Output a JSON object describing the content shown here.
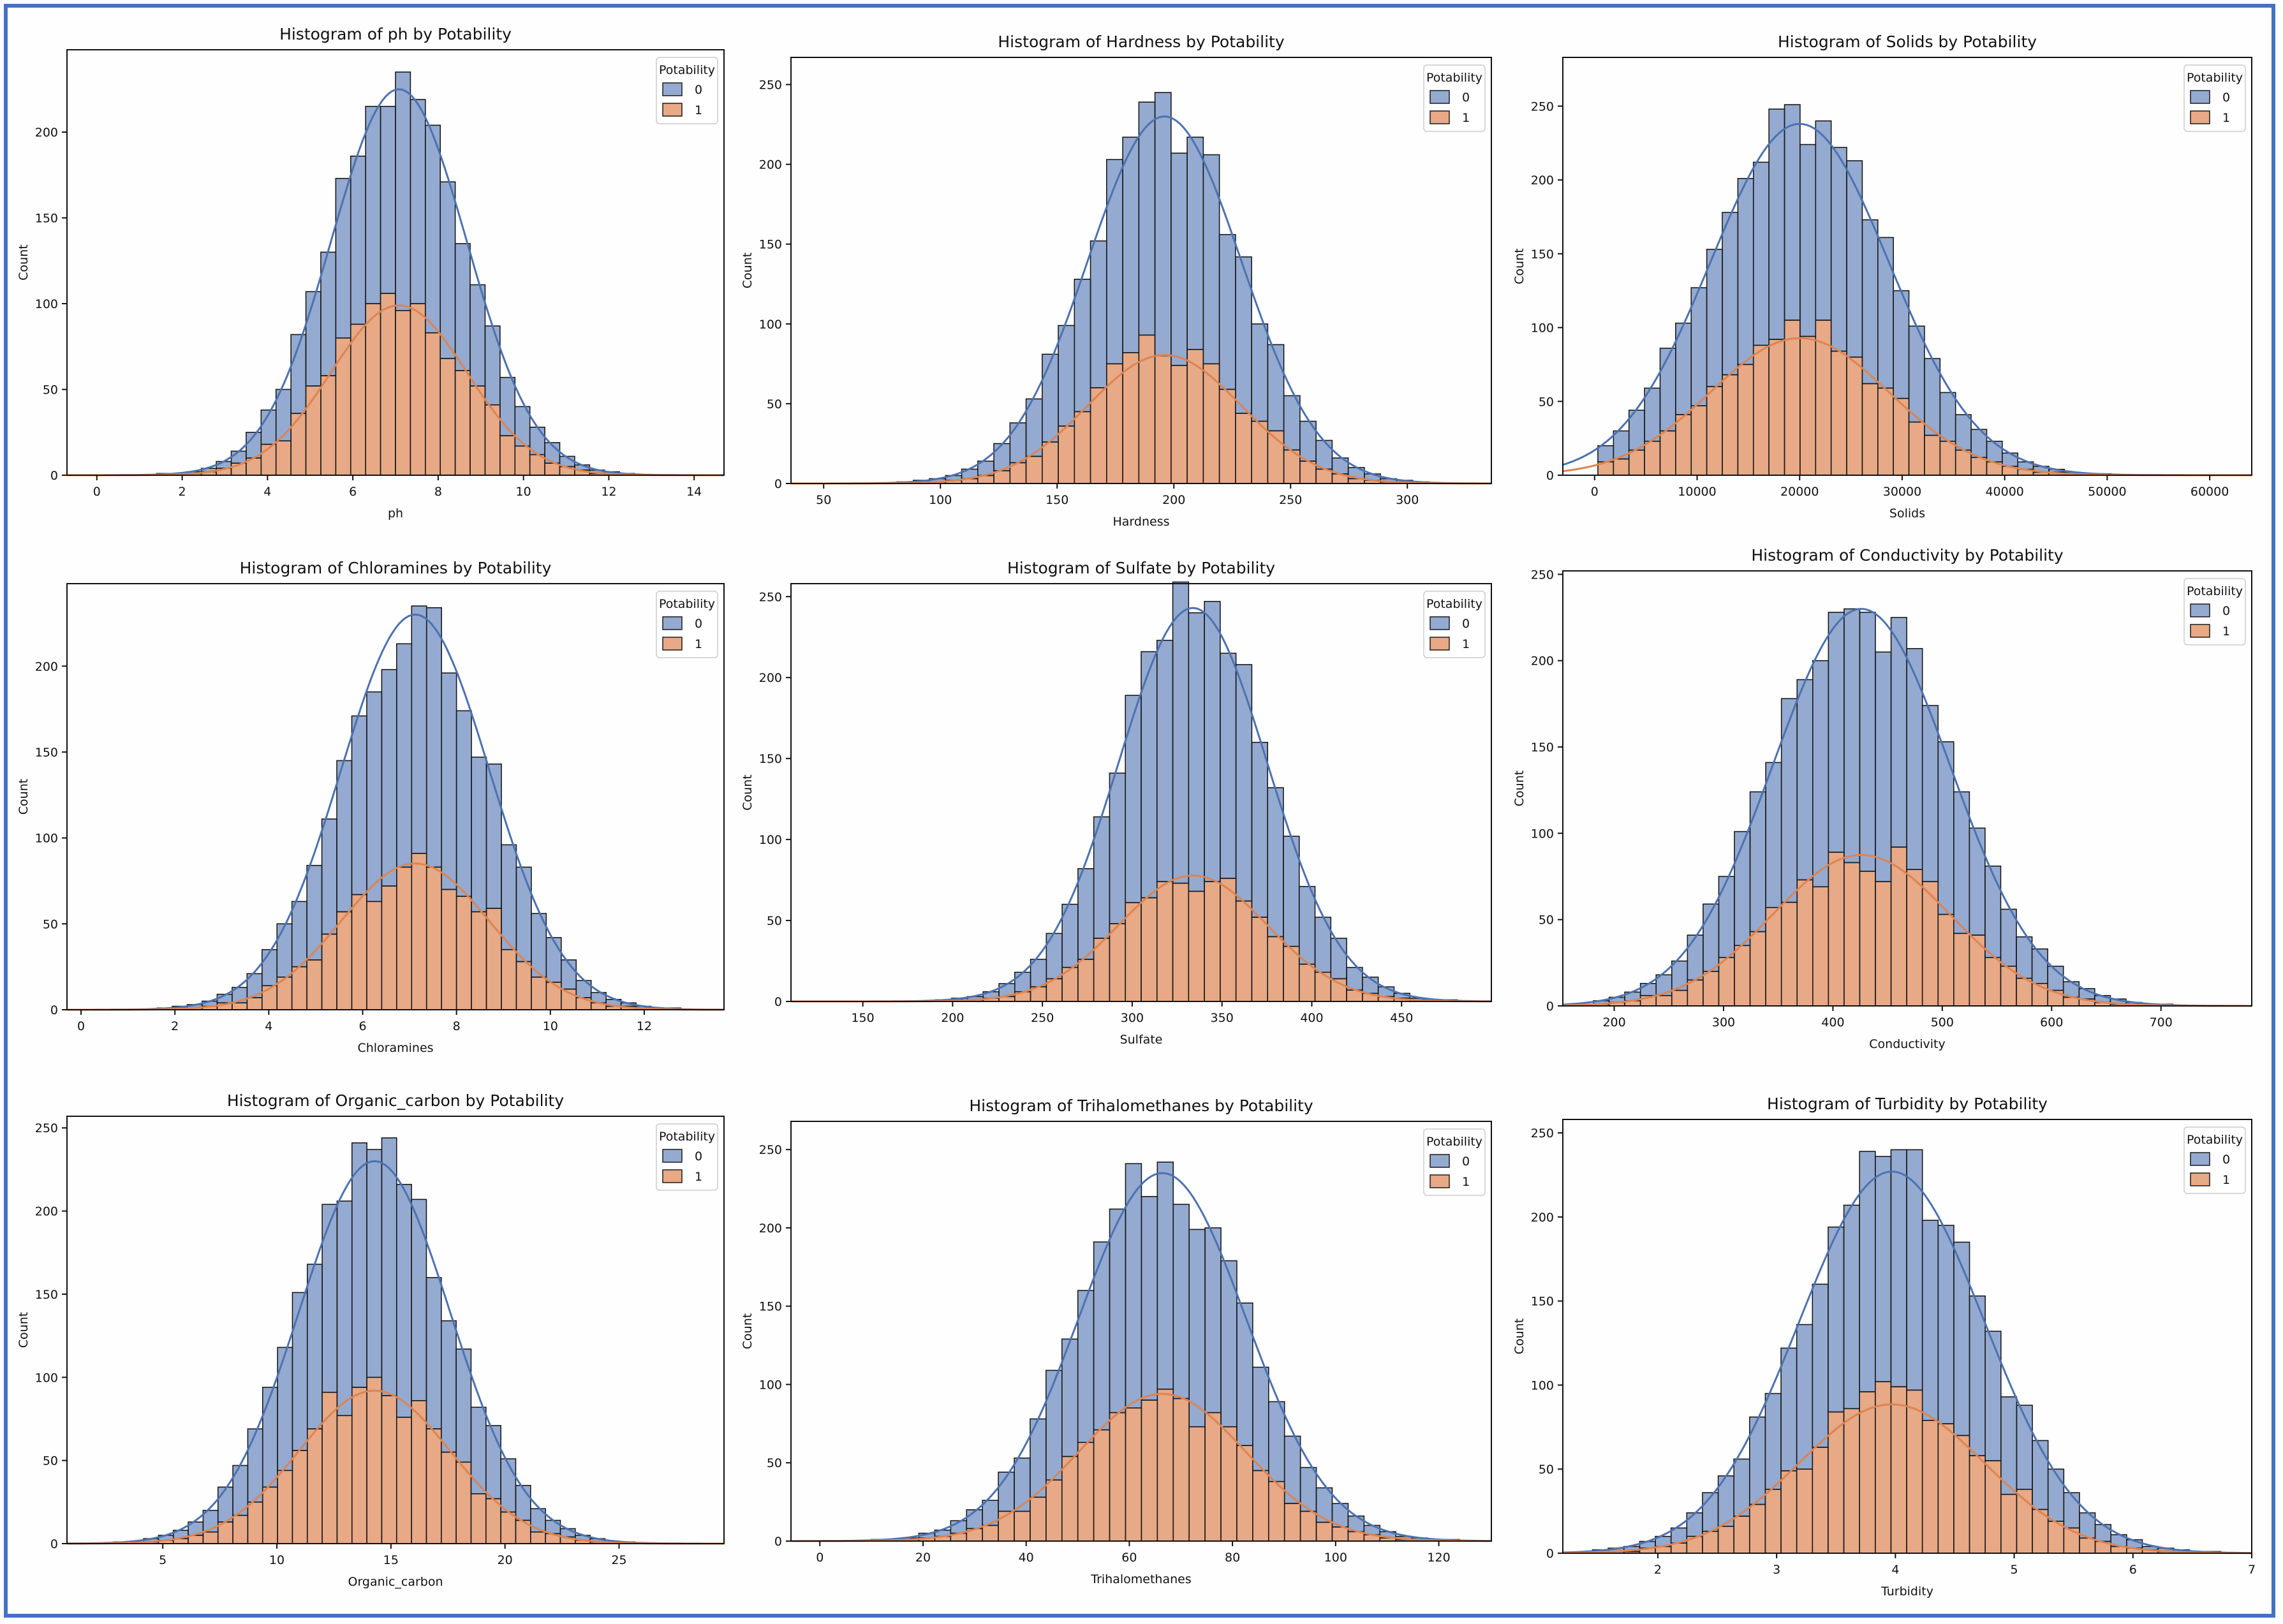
{
  "colors": {
    "class0": "#4c72b0",
    "class1": "#dd8452",
    "frame": "#4472c4"
  },
  "chart_data": [
    {
      "type": "histogram-stacked",
      "title": "Histogram of ph by Potability",
      "xlabel": "ph",
      "ylabel": "Count",
      "legend_title": "Potability",
      "legend_labels": [
        "0",
        "1"
      ],
      "legend_loc": "top-right",
      "xlim": [
        -0.7,
        14.7
      ],
      "ylim": [
        0,
        248
      ],
      "xticks": [
        0,
        2,
        4,
        6,
        8,
        10,
        12,
        14
      ],
      "yticks": [
        0,
        50,
        100,
        150,
        200
      ],
      "x_start": 0,
      "x_end": 14,
      "mean": 7.08,
      "sd": 1.59,
      "peak": 225,
      "ratio": 0.44
    },
    {
      "type": "histogram-stacked",
      "title": "Histogram of Hardness by Potability",
      "xlabel": "Hardness",
      "ylabel": "Count",
      "legend_title": "Potability",
      "legend_labels": [
        "0",
        "1"
      ],
      "legend_loc": "top-right",
      "xlim": [
        36,
        336
      ],
      "ylim": [
        0,
        267
      ],
      "xticks": [
        50,
        100,
        150,
        200,
        250,
        300
      ],
      "yticks": [
        0,
        50,
        100,
        150,
        200,
        250
      ],
      "x_start": 47,
      "x_end": 323,
      "mean": 196,
      "sd": 32.9,
      "peak": 230,
      "ratio": 0.35
    },
    {
      "type": "histogram-stacked",
      "title": "Histogram of Solids by Potability",
      "xlabel": "Solids",
      "ylabel": "Count",
      "legend_title": "Potability",
      "legend_labels": [
        "0",
        "1"
      ],
      "legend_loc": "top-right",
      "xlim": [
        -3100,
        64100
      ],
      "ylim": [
        0,
        283
      ],
      "xticks": [
        0,
        10000,
        20000,
        30000,
        40000,
        50000,
        60000
      ],
      "yticks": [
        0,
        50,
        100,
        150,
        200,
        250
      ],
      "x_start": 320,
      "x_end": 61000,
      "mean": 20000,
      "sd": 8700,
      "peak": 238,
      "ratio": 0.39
    },
    {
      "type": "histogram-stacked",
      "title": "Histogram of Chloramines by Potability",
      "xlabel": "Chloramines",
      "ylabel": "Count",
      "legend_title": "Potability",
      "legend_labels": [
        "0",
        "1"
      ],
      "legend_loc": "top-right",
      "xlim": [
        -0.3,
        13.7
      ],
      "ylim": [
        0,
        248
      ],
      "xticks": [
        0,
        2,
        4,
        6,
        8,
        10,
        12
      ],
      "yticks": [
        0,
        50,
        100,
        150,
        200
      ],
      "x_start": 0.35,
      "x_end": 13.1,
      "mean": 7.12,
      "sd": 1.58,
      "peak": 230,
      "ratio": 0.37
    },
    {
      "type": "histogram-stacked",
      "title": "Histogram of Sulfate by Potability",
      "xlabel": "Sulfate",
      "ylabel": "Count",
      "legend_title": "Potability",
      "legend_labels": [
        "0",
        "1"
      ],
      "legend_loc": "top-right",
      "xlim": [
        110,
        500
      ],
      "ylim": [
        0,
        258
      ],
      "xticks": [
        150,
        200,
        250,
        300,
        350,
        400,
        450
      ],
      "yticks": [
        0,
        50,
        100,
        150,
        200,
        250
      ],
      "x_start": 129,
      "x_end": 481,
      "mean": 333.8,
      "sd": 41.4,
      "peak": 243,
      "ratio": 0.32
    },
    {
      "type": "histogram-stacked",
      "title": "Histogram of Conductivity by Potability",
      "xlabel": "Conductivity",
      "ylabel": "Count",
      "legend_title": "Potability",
      "legend_labels": [
        "0",
        "1"
      ],
      "legend_loc": "top-right",
      "xlim": [
        153,
        783
      ],
      "ylim": [
        0,
        252
      ],
      "xticks": [
        200,
        300,
        400,
        500,
        600,
        700
      ],
      "yticks": [
        0,
        50,
        100,
        150,
        200,
        250
      ],
      "x_start": 181,
      "x_end": 754,
      "mean": 426,
      "sd": 81,
      "peak": 230,
      "ratio": 0.38
    },
    {
      "type": "histogram-stacked",
      "title": "Histogram of Organic_carbon by Potability",
      "xlabel": "Organic_carbon",
      "ylabel": "Count",
      "legend_title": "Potability",
      "legend_labels": [
        "0",
        "1"
      ],
      "legend_loc": "top-right",
      "xlim": [
        0.8,
        29.6
      ],
      "ylim": [
        0,
        257
      ],
      "xticks": [
        5,
        10,
        15,
        20,
        25
      ],
      "yticks": [
        0,
        50,
        100,
        150,
        200,
        250
      ],
      "x_start": 2.2,
      "x_end": 28.3,
      "mean": 14.28,
      "sd": 3.31,
      "peak": 230,
      "ratio": 0.4
    },
    {
      "type": "histogram-stacked",
      "title": "Histogram of Trihalomethanes by Potability",
      "xlabel": "Trihalomethanes",
      "ylabel": "Count",
      "legend_title": "Potability",
      "legend_labels": [
        "0",
        "1"
      ],
      "legend_loc": "top-right",
      "xlim": [
        -5.6,
        130.2
      ],
      "ylim": [
        0,
        268
      ],
      "xticks": [
        0,
        20,
        40,
        60,
        80,
        100,
        120
      ],
      "yticks": [
        0,
        50,
        100,
        150,
        200,
        250
      ],
      "x_start": 0.7,
      "x_end": 124,
      "mean": 66.4,
      "sd": 16.2,
      "peak": 235,
      "ratio": 0.4
    },
    {
      "type": "histogram-stacked",
      "title": "Histogram of Turbidity by Potability",
      "xlabel": "Turbidity",
      "ylabel": "Count",
      "legend_title": "Potability",
      "legend_labels": [
        "0",
        "1"
      ],
      "legend_loc": "top-right",
      "xlim": [
        1.2,
        7.0
      ],
      "ylim": [
        0,
        258
      ],
      "xticks": [
        2,
        3,
        4,
        5,
        6,
        7
      ],
      "yticks": [
        0,
        50,
        100,
        150,
        200,
        250
      ],
      "x_start": 1.45,
      "x_end": 6.74,
      "mean": 3.97,
      "sd": 0.78,
      "peak": 227,
      "ratio": 0.39
    }
  ]
}
